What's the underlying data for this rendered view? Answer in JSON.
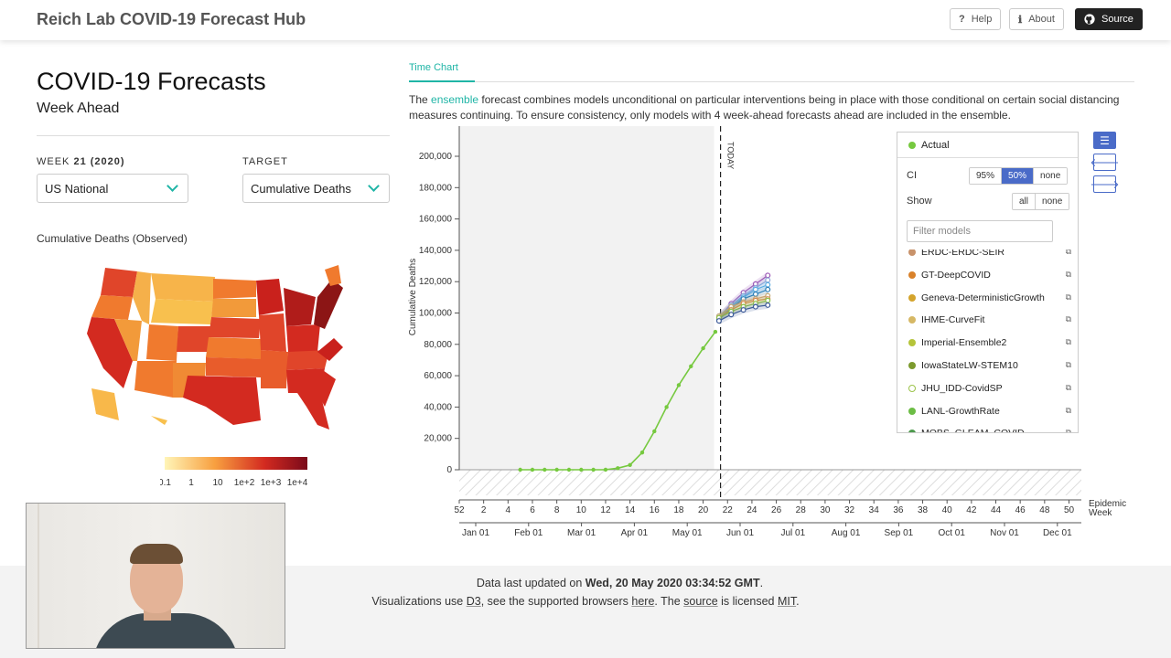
{
  "nav": {
    "brand": "Reich Lab COVID-19 Forecast Hub",
    "help": "Help",
    "about": "About",
    "source": "Source"
  },
  "page": {
    "title": "COVID-19 Forecasts",
    "subtitle": "Week Ahead"
  },
  "filters": {
    "week_label": "WEEK",
    "week_value": "21 (2020)",
    "region_value": "US National",
    "target_label": "TARGET",
    "target_value": "Cumulative Deaths"
  },
  "map": {
    "label": "Cumulative Deaths (Observed)",
    "legend_ticks": [
      "0.1",
      "1",
      "10",
      "1e+2",
      "1e+3",
      "1e+4"
    ]
  },
  "tabs": {
    "time_chart": "Time Chart"
  },
  "description": {
    "pre": "The ",
    "link": "ensemble",
    "post": " forecast combines models unconditional on particular interventions being in place with those conditional on certain social distancing measures continuing. To ensure consistency, only models with 4 week-ahead forecasts ahead are included in the ensemble."
  },
  "chart_data": {
    "type": "line",
    "ylabel": "Cumulative Deaths",
    "xlabel": "Epidemic Week",
    "today_label": "TODAY",
    "ylim": [
      0,
      200000
    ],
    "yticks": [
      0,
      20000,
      40000,
      60000,
      80000,
      100000,
      120000,
      140000,
      160000,
      180000,
      200000
    ],
    "week_ticks": [
      "52",
      "2",
      "4",
      "6",
      "8",
      "10",
      "12",
      "14",
      "16",
      "18",
      "20",
      "22",
      "24",
      "26",
      "28",
      "30",
      "32",
      "34",
      "36",
      "38",
      "40",
      "42",
      "44",
      "46",
      "48",
      "50"
    ],
    "month_ticks": [
      "Jan 01",
      "Feb 01",
      "Mar 01",
      "Apr 01",
      "May 01",
      "Jun 01",
      "Jul 01",
      "Aug 01",
      "Sep 01",
      "Oct 01",
      "Nov 01",
      "Dec 01"
    ],
    "today_week": 21.5,
    "actual": {
      "name": "Actual",
      "weeks": [
        5,
        6,
        7,
        8,
        9,
        10,
        11,
        12,
        13,
        14,
        15,
        16,
        17,
        18,
        19,
        20,
        21
      ],
      "values": [
        0,
        0,
        0,
        0,
        0,
        0,
        0,
        50,
        1000,
        3000,
        11000,
        24500,
        40000,
        54000,
        66000,
        77500,
        88000
      ]
    },
    "forecast_weeks": [
      21,
      22,
      23,
      24,
      25
    ],
    "forecasts": [
      {
        "color": "#9b59b6",
        "values": [
          97000,
          106000,
          113000,
          118500,
          124000
        ]
      },
      {
        "color": "#8fa8d8",
        "values": [
          98000,
          105000,
          111000,
          116000,
          121000
        ]
      },
      {
        "color": "#5dade2",
        "values": [
          97000,
          104000,
          110000,
          115000,
          118000
        ]
      },
      {
        "color": "#2c7fb8",
        "values": [
          96000,
          103000,
          109000,
          112000,
          115000
        ]
      },
      {
        "color": "#c2a878",
        "values": [
          98000,
          104000,
          107000,
          109000,
          111000
        ]
      },
      {
        "color": "#d68a4c",
        "values": [
          97000,
          102000,
          106000,
          108000,
          109000
        ]
      },
      {
        "color": "#8bc34a",
        "values": [
          97000,
          101000,
          104000,
          106000,
          108000
        ]
      },
      {
        "color": "#3b5998",
        "values": [
          95000,
          99000,
          102000,
          104000,
          105000
        ]
      }
    ]
  },
  "panel": {
    "actual_label": "Actual",
    "ci_label": "CI",
    "ci_options": [
      "95%",
      "50%",
      "none"
    ],
    "show_label": "Show",
    "show_options": [
      "all",
      "none"
    ],
    "filter_placeholder": "Filter models",
    "models": [
      {
        "name": "ERDC-ERDC-SEIR",
        "color": "#c8926a",
        "filled": true
      },
      {
        "name": "GT-DeepCOVID",
        "color": "#d9822b",
        "filled": true
      },
      {
        "name": "Geneva-DeterministicGrowth",
        "color": "#d4a42c",
        "filled": true
      },
      {
        "name": "IHME-CurveFit",
        "color": "#d6b865",
        "filled": true
      },
      {
        "name": "Imperial-Ensemble2",
        "color": "#b5c43a",
        "filled": true
      },
      {
        "name": "IowaStateLW-STEM10",
        "color": "#7c9a2e",
        "filled": true
      },
      {
        "name": "JHU_IDD-CovidSP",
        "color": "#9cc34a",
        "filled": false
      },
      {
        "name": "LANL-GrowthRate",
        "color": "#6cbd45",
        "filled": true
      },
      {
        "name": "MOBS_GLEAM_COVID",
        "color": "#4d9a4d",
        "filled": true
      }
    ],
    "actual_color": "#76c93f"
  },
  "footer": {
    "updated_pre": "Data last updated on ",
    "updated_date": "Wed, 20 May 2020 03:34:52 GMT",
    "updated_post": ".",
    "l2_a": "Visualizations use ",
    "l2_d3": "D3",
    "l2_b": ", see the supported browsers ",
    "l2_here": "here",
    "l2_c": ". The ",
    "l2_source": "source",
    "l2_d": " is licensed ",
    "l2_mit": "MIT",
    "l2_e": "."
  }
}
